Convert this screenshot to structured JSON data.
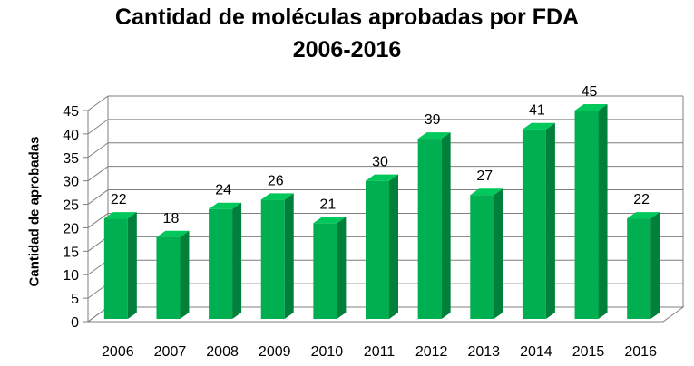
{
  "chart_data": {
    "type": "bar",
    "title": "Cantidad de moléculas aprobadas por FDA",
    "subtitle": "2006-2016",
    "xlabel": "",
    "ylabel": "Cantidad de aprobadas",
    "categories": [
      "2006",
      "2007",
      "2008",
      "2009",
      "2010",
      "2011",
      "2012",
      "2013",
      "2014",
      "2015",
      "2016"
    ],
    "values": [
      22,
      18,
      24,
      26,
      21,
      30,
      39,
      27,
      41,
      45,
      22
    ],
    "ylim": [
      0,
      45
    ],
    "yticks": [
      0,
      5,
      10,
      15,
      20,
      25,
      30,
      35,
      40,
      45
    ],
    "grid": true,
    "legend": "none",
    "data_labels": true,
    "colors": {
      "bar_front": "#00b050",
      "bar_side": "#00803a",
      "bar_top": "#00c85a",
      "grid": "#7f7f7f"
    }
  }
}
